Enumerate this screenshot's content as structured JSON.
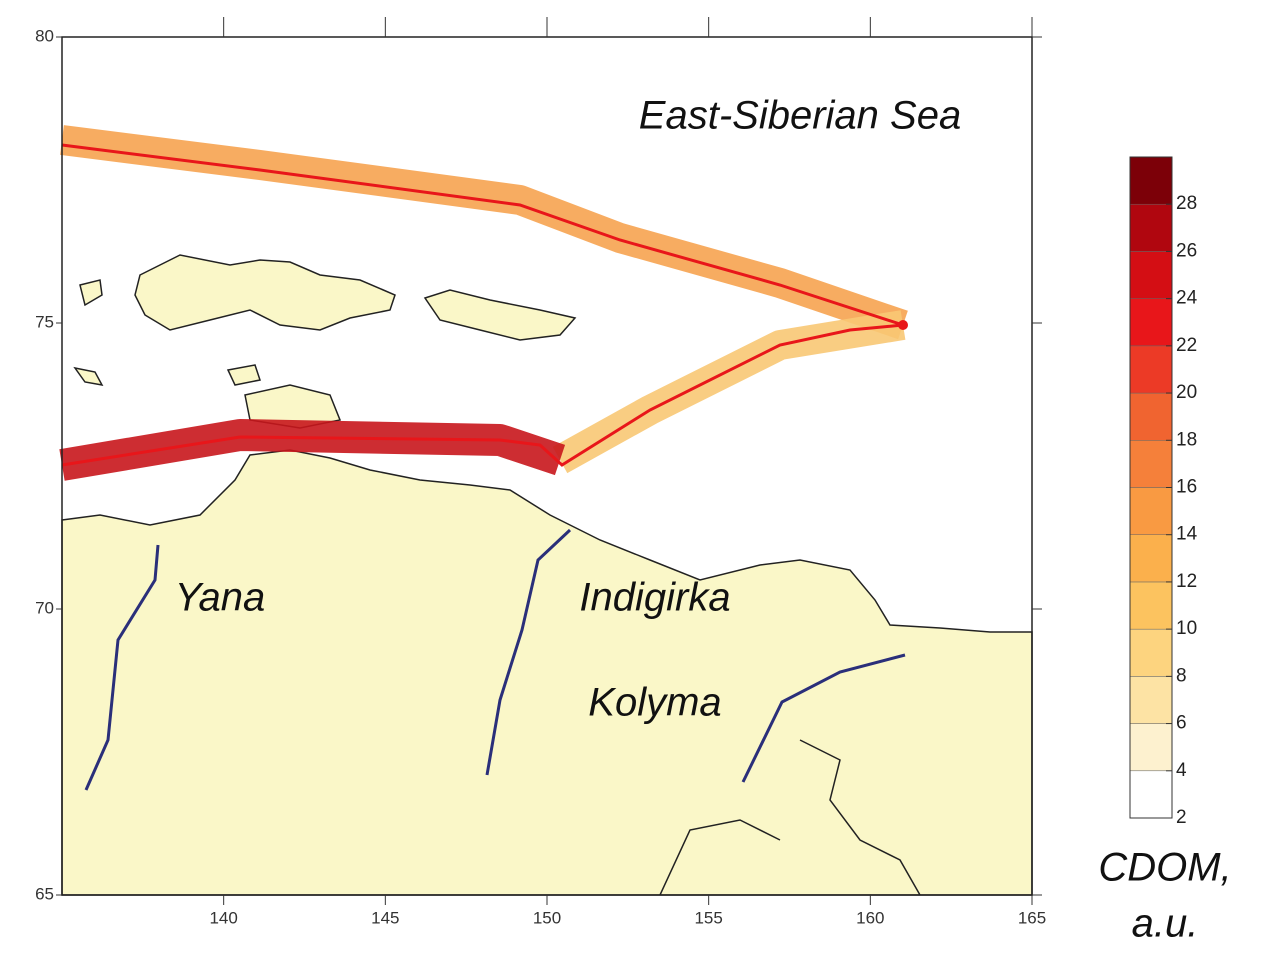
{
  "map": {
    "xlim": [
      135,
      165
    ],
    "xticks": [
      140,
      145,
      150,
      155,
      160,
      165
    ],
    "ylim": [
      65,
      80
    ],
    "yticks": [
      65,
      70,
      75,
      80
    ],
    "labels": [
      "East-Siberian Sea",
      "Yana",
      "Indigirka",
      "Kolyma"
    ],
    "colorbar": {
      "title": [
        "CDOM,",
        "a.u."
      ],
      "clim": [
        2,
        30
      ],
      "ticks": [
        2,
        4,
        6,
        8,
        10,
        12,
        14,
        16,
        18,
        20,
        22,
        24,
        26,
        28
      ],
      "colors": [
        "#ffffff",
        "#fdf1cf",
        "#fde3a4",
        "#fdd47f",
        "#fcc35f",
        "#fbb04c",
        "#f99a42",
        "#f5803a",
        "#f06430",
        "#ec3a26",
        "#e8161a",
        "#d40e14",
        "#b0060f",
        "#7c0008"
      ]
    }
  }
}
